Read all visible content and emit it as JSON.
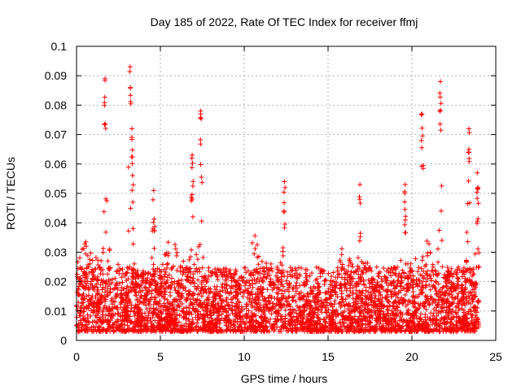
{
  "chart_data": {
    "type": "scatter",
    "title": "Day 185 of 2022, Rate Of TEC Index for receiver ffmj",
    "xlabel": "GPS time / hours",
    "ylabel": "ROTI / TECUs",
    "xlim": [
      0,
      25
    ],
    "ylim": [
      0,
      0.1
    ],
    "x_ticks": [
      "0",
      "5",
      "10",
      "15",
      "20",
      "25"
    ],
    "y_ticks": [
      "0",
      "0.01",
      "0.02",
      "0.03",
      "0.04",
      "0.05",
      "0.06",
      "0.07",
      "0.08",
      "0.09",
      "0.1"
    ],
    "grid": true,
    "legend": "none",
    "marker": "+",
    "series_color": "#ff0000",
    "series": [
      {
        "name": "ROTI",
        "x_range": [
          0,
          24
        ],
        "baseline_range": [
          0.003,
          0.025
        ],
        "peaks": [
          {
            "x": 1.7,
            "y": 0.089
          },
          {
            "x": 3.2,
            "y": 0.093
          },
          {
            "x": 3.3,
            "y": 0.072
          },
          {
            "x": 7.4,
            "y": 0.078
          },
          {
            "x": 6.9,
            "y": 0.063
          },
          {
            "x": 4.6,
            "y": 0.051
          },
          {
            "x": 12.4,
            "y": 0.054
          },
          {
            "x": 16.9,
            "y": 0.053
          },
          {
            "x": 19.6,
            "y": 0.053
          },
          {
            "x": 20.6,
            "y": 0.077
          },
          {
            "x": 21.7,
            "y": 0.088
          },
          {
            "x": 23.4,
            "y": 0.072
          },
          {
            "x": 23.9,
            "y": 0.057
          }
        ]
      }
    ]
  }
}
